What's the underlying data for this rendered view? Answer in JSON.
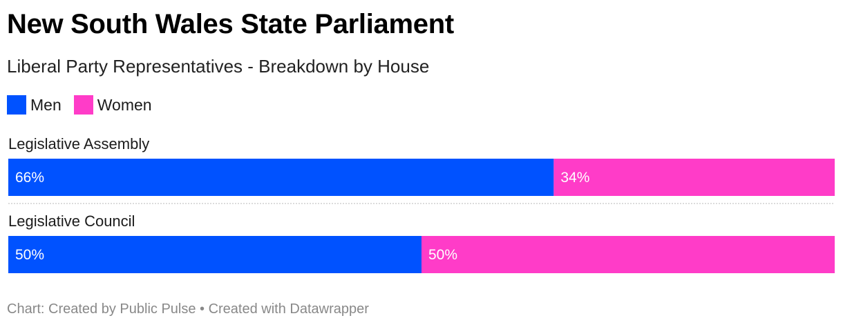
{
  "title": "New South Wales State Parliament",
  "subtitle": "Liberal Party Representatives - Breakdown by House",
  "footer": "Chart: Created by Public Pulse • Created with Datawrapper",
  "colors": {
    "men": "#0052ff",
    "women": "#ff3cc8",
    "divider": "#cfcfcf"
  },
  "chart_data": {
    "type": "bar",
    "orientation": "horizontal",
    "stacked": true,
    "normalized": true,
    "categories": [
      "Legislative Assembly",
      "Legislative Council"
    ],
    "series": [
      {
        "name": "Men",
        "values": [
          66,
          50
        ],
        "labels": [
          "66%",
          "50%"
        ],
        "color": "#0052ff"
      },
      {
        "name": "Women",
        "values": [
          34,
          50
        ],
        "labels": [
          "34%",
          "50%"
        ],
        "color": "#ff3cc8"
      }
    ],
    "xlim": [
      0,
      100
    ],
    "legend": "top-left",
    "grid": false
  }
}
